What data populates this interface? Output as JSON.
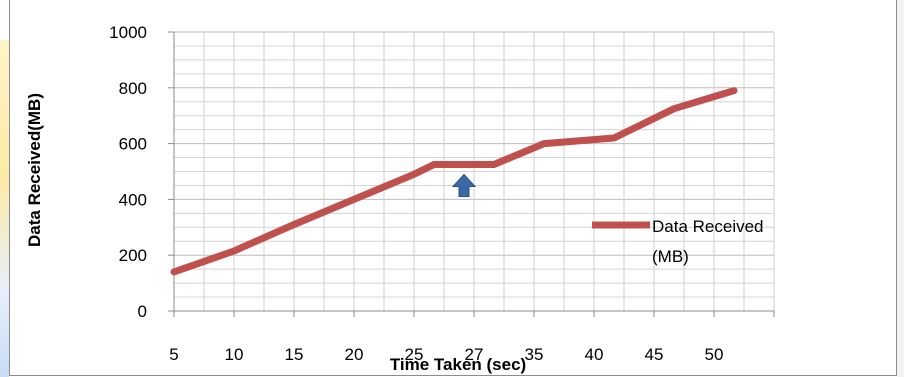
{
  "chart_data": {
    "type": "line",
    "title": "",
    "xlabel": "Time Taken (sec)",
    "ylabel": "Data Received(MB)",
    "categories": [
      "5",
      "10",
      "15",
      "20",
      "25",
      "27",
      "35",
      "40",
      "45",
      "50"
    ],
    "series": [
      {
        "name": "Data Received (MB)",
        "color": "#c0504d",
        "x": [
          5,
          10,
          15,
          20,
          25,
          25,
          27,
          35,
          40,
          45,
          50
        ],
        "values": [
          140,
          215,
          310,
          400,
          490,
          525,
          525,
          600,
          620,
          725,
          790
        ]
      }
    ],
    "x_categories_on_axis": [
      "5",
      "10",
      "15",
      "20",
      "25",
      "27",
      "35",
      "40",
      "45",
      "50"
    ],
    "ylim": [
      0,
      1000
    ],
    "yticks": [
      "0",
      "200",
      "400",
      "600",
      "800",
      "1000"
    ],
    "grid": true,
    "legend": {
      "position": "right",
      "line1": "Data Received",
      "line2": "(MB)"
    },
    "annotation": {
      "type": "up-arrow",
      "x_category": "25",
      "y": 525,
      "color": "#3a69a8"
    }
  }
}
